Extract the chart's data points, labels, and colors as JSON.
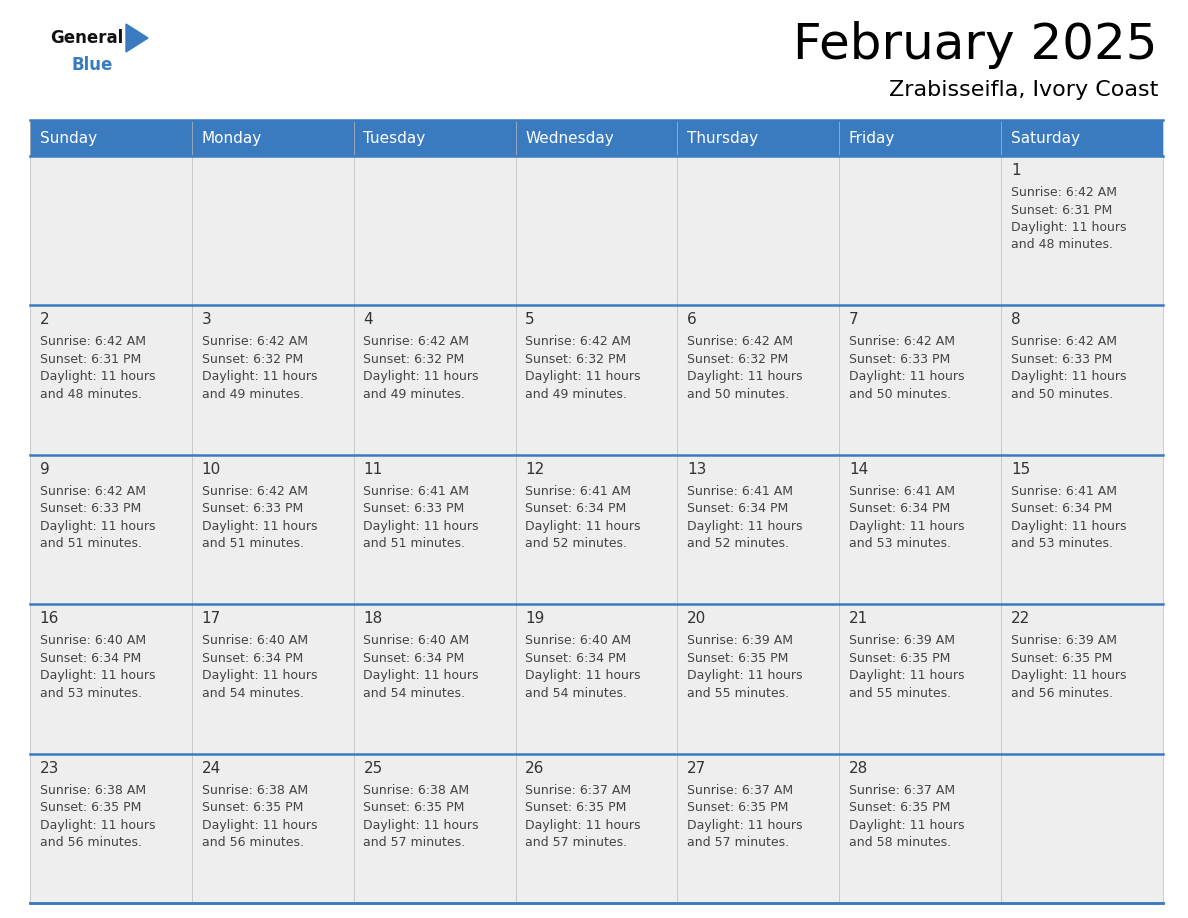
{
  "title": "February 2025",
  "subtitle": "Zrabisseifla, Ivory Coast",
  "header_color": "#3a7bbf",
  "header_text_color": "#ffffff",
  "days_of_week": [
    "Sunday",
    "Monday",
    "Tuesday",
    "Wednesday",
    "Thursday",
    "Friday",
    "Saturday"
  ],
  "background_color": "#ffffff",
  "cell_bg_light": "#eeeeee",
  "title_color": "#000000",
  "subtitle_color": "#000000",
  "day_number_color": "#333333",
  "info_text_color": "#444444",
  "grid_line_color": "#3a7bbf",
  "calendar_data": [
    [
      null,
      null,
      null,
      null,
      null,
      null,
      {
        "day": 1,
        "sunrise": "6:42 AM",
        "sunset": "6:31 PM",
        "daylight_line1": "Daylight: 11 hours",
        "daylight_line2": "and 48 minutes."
      }
    ],
    [
      {
        "day": 2,
        "sunrise": "6:42 AM",
        "sunset": "6:31 PM",
        "daylight_line1": "Daylight: 11 hours",
        "daylight_line2": "and 48 minutes."
      },
      {
        "day": 3,
        "sunrise": "6:42 AM",
        "sunset": "6:32 PM",
        "daylight_line1": "Daylight: 11 hours",
        "daylight_line2": "and 49 minutes."
      },
      {
        "day": 4,
        "sunrise": "6:42 AM",
        "sunset": "6:32 PM",
        "daylight_line1": "Daylight: 11 hours",
        "daylight_line2": "and 49 minutes."
      },
      {
        "day": 5,
        "sunrise": "6:42 AM",
        "sunset": "6:32 PM",
        "daylight_line1": "Daylight: 11 hours",
        "daylight_line2": "and 49 minutes."
      },
      {
        "day": 6,
        "sunrise": "6:42 AM",
        "sunset": "6:32 PM",
        "daylight_line1": "Daylight: 11 hours",
        "daylight_line2": "and 50 minutes."
      },
      {
        "day": 7,
        "sunrise": "6:42 AM",
        "sunset": "6:33 PM",
        "daylight_line1": "Daylight: 11 hours",
        "daylight_line2": "and 50 minutes."
      },
      {
        "day": 8,
        "sunrise": "6:42 AM",
        "sunset": "6:33 PM",
        "daylight_line1": "Daylight: 11 hours",
        "daylight_line2": "and 50 minutes."
      }
    ],
    [
      {
        "day": 9,
        "sunrise": "6:42 AM",
        "sunset": "6:33 PM",
        "daylight_line1": "Daylight: 11 hours",
        "daylight_line2": "and 51 minutes."
      },
      {
        "day": 10,
        "sunrise": "6:42 AM",
        "sunset": "6:33 PM",
        "daylight_line1": "Daylight: 11 hours",
        "daylight_line2": "and 51 minutes."
      },
      {
        "day": 11,
        "sunrise": "6:41 AM",
        "sunset": "6:33 PM",
        "daylight_line1": "Daylight: 11 hours",
        "daylight_line2": "and 51 minutes."
      },
      {
        "day": 12,
        "sunrise": "6:41 AM",
        "sunset": "6:34 PM",
        "daylight_line1": "Daylight: 11 hours",
        "daylight_line2": "and 52 minutes."
      },
      {
        "day": 13,
        "sunrise": "6:41 AM",
        "sunset": "6:34 PM",
        "daylight_line1": "Daylight: 11 hours",
        "daylight_line2": "and 52 minutes."
      },
      {
        "day": 14,
        "sunrise": "6:41 AM",
        "sunset": "6:34 PM",
        "daylight_line1": "Daylight: 11 hours",
        "daylight_line2": "and 53 minutes."
      },
      {
        "day": 15,
        "sunrise": "6:41 AM",
        "sunset": "6:34 PM",
        "daylight_line1": "Daylight: 11 hours",
        "daylight_line2": "and 53 minutes."
      }
    ],
    [
      {
        "day": 16,
        "sunrise": "6:40 AM",
        "sunset": "6:34 PM",
        "daylight_line1": "Daylight: 11 hours",
        "daylight_line2": "and 53 minutes."
      },
      {
        "day": 17,
        "sunrise": "6:40 AM",
        "sunset": "6:34 PM",
        "daylight_line1": "Daylight: 11 hours",
        "daylight_line2": "and 54 minutes."
      },
      {
        "day": 18,
        "sunrise": "6:40 AM",
        "sunset": "6:34 PM",
        "daylight_line1": "Daylight: 11 hours",
        "daylight_line2": "and 54 minutes."
      },
      {
        "day": 19,
        "sunrise": "6:40 AM",
        "sunset": "6:34 PM",
        "daylight_line1": "Daylight: 11 hours",
        "daylight_line2": "and 54 minutes."
      },
      {
        "day": 20,
        "sunrise": "6:39 AM",
        "sunset": "6:35 PM",
        "daylight_line1": "Daylight: 11 hours",
        "daylight_line2": "and 55 minutes."
      },
      {
        "day": 21,
        "sunrise": "6:39 AM",
        "sunset": "6:35 PM",
        "daylight_line1": "Daylight: 11 hours",
        "daylight_line2": "and 55 minutes."
      },
      {
        "day": 22,
        "sunrise": "6:39 AM",
        "sunset": "6:35 PM",
        "daylight_line1": "Daylight: 11 hours",
        "daylight_line2": "and 56 minutes."
      }
    ],
    [
      {
        "day": 23,
        "sunrise": "6:38 AM",
        "sunset": "6:35 PM",
        "daylight_line1": "Daylight: 11 hours",
        "daylight_line2": "and 56 minutes."
      },
      {
        "day": 24,
        "sunrise": "6:38 AM",
        "sunset": "6:35 PM",
        "daylight_line1": "Daylight: 11 hours",
        "daylight_line2": "and 56 minutes."
      },
      {
        "day": 25,
        "sunrise": "6:38 AM",
        "sunset": "6:35 PM",
        "daylight_line1": "Daylight: 11 hours",
        "daylight_line2": "and 57 minutes."
      },
      {
        "day": 26,
        "sunrise": "6:37 AM",
        "sunset": "6:35 PM",
        "daylight_line1": "Daylight: 11 hours",
        "daylight_line2": "and 57 minutes."
      },
      {
        "day": 27,
        "sunrise": "6:37 AM",
        "sunset": "6:35 PM",
        "daylight_line1": "Daylight: 11 hours",
        "daylight_line2": "and 57 minutes."
      },
      {
        "day": 28,
        "sunrise": "6:37 AM",
        "sunset": "6:35 PM",
        "daylight_line1": "Daylight: 11 hours",
        "daylight_line2": "and 58 minutes."
      },
      null
    ]
  ],
  "num_rows": 5,
  "num_cols": 7,
  "logo_general_color": "#111111",
  "logo_blue_color": "#3a7bbf",
  "logo_triangle_color": "#3a7bbf"
}
